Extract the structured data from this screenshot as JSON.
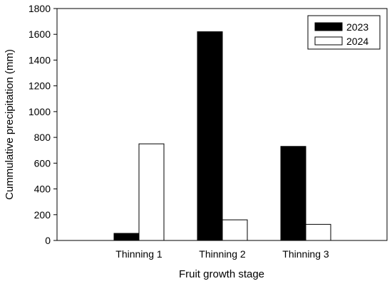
{
  "chart_data": {
    "type": "bar",
    "categories": [
      "Thinning 1",
      "Thinning 2",
      "Thinning 3"
    ],
    "series": [
      {
        "name": "2023",
        "values": [
          55,
          1620,
          730
        ],
        "color": "#000000"
      },
      {
        "name": "2024",
        "values": [
          750,
          160,
          125
        ],
        "color": "#ffffff"
      }
    ],
    "xlabel": "Fruit growth stage",
    "ylabel": "Cummulative precipitation (mm)",
    "ylim": [
      0,
      1800
    ],
    "yticks": [
      0,
      200,
      400,
      600,
      800,
      1000,
      1200,
      1400,
      1600,
      1800
    ],
    "grid": false,
    "legend_position": "top-right"
  }
}
